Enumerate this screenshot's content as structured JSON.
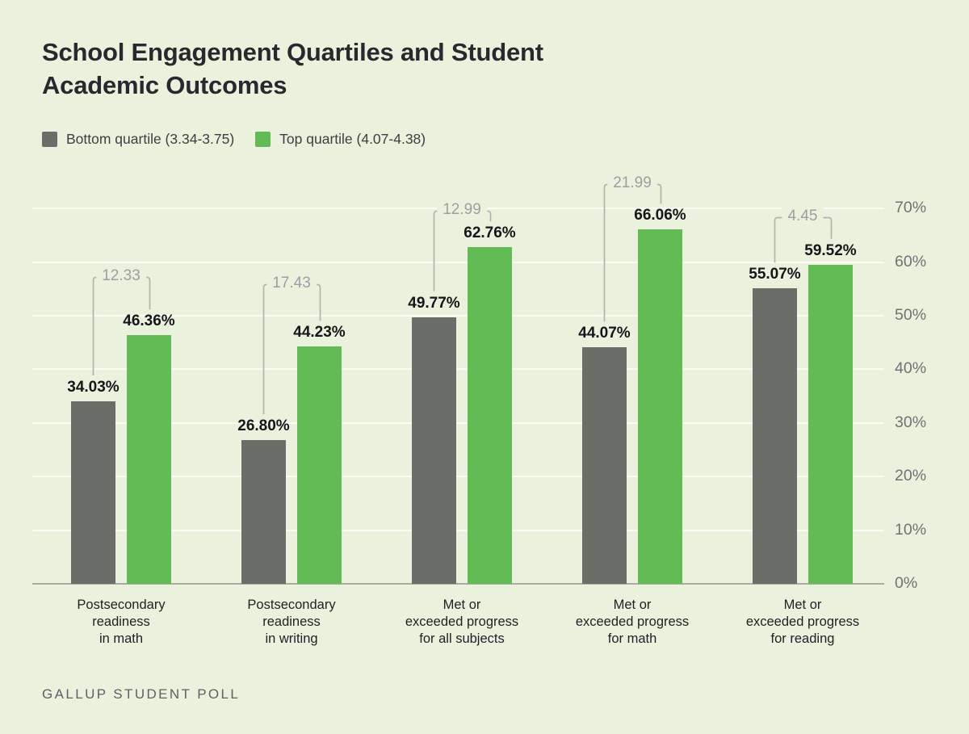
{
  "title": {
    "line1": "School Engagement Quartiles and Student",
    "line2": "Academic Outcomes"
  },
  "footer": {
    "source": "GALLUP STUDENT POLL"
  },
  "colors": {
    "background": "#eaf2de",
    "grid": "#fbfdf5",
    "axis_line": "#a9ada1",
    "bracket": "#b2b5ab",
    "diff_text": "#9b9fa3",
    "bottom_quartile": "#6b6d69",
    "top_quartile": "#62bb54"
  },
  "chart_data": {
    "type": "bar",
    "title": "School Engagement Quartiles and Student Academic Outcomes",
    "categories": [
      "Postsecondary\nreadiness\nin math",
      "Postsecondary\nreadiness\nin writing",
      "Met or\nexceeded progress\nfor all subjects",
      "Met or\nexceeded progress\nfor math",
      "Met or\nexceeded progress\nfor reading"
    ],
    "series": [
      {
        "name": "Bottom quartile (3.34-3.75)",
        "color": "#6b6d69",
        "values": [
          34.03,
          26.8,
          49.77,
          44.07,
          55.07
        ]
      },
      {
        "name": "Top quartile (4.07-4.38)",
        "color": "#62bb54",
        "values": [
          46.36,
          44.23,
          62.76,
          66.06,
          59.52
        ]
      }
    ],
    "differences": [
      12.33,
      17.43,
      12.99,
      21.99,
      4.45
    ],
    "value_suffix": "%",
    "value_decimals": 2,
    "y_ticks": [
      "0%",
      "10%",
      "20%",
      "30%",
      "40%",
      "50%",
      "60%",
      "70%"
    ],
    "ylim": [
      0,
      70
    ],
    "grid": true,
    "legend_position": "top-left",
    "source": "GALLUP STUDENT POLL"
  }
}
